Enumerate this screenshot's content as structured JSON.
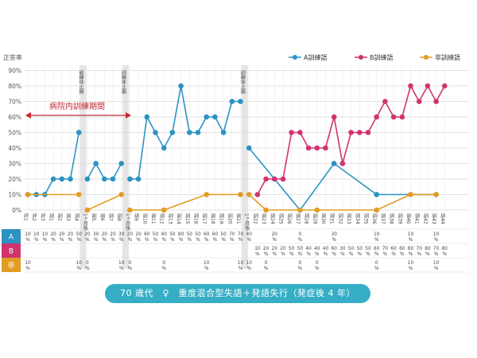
{
  "colors": {
    "a": "#2b93c3",
    "b": "#d1336f",
    "c": "#e39c22",
    "arrow": "#c42a34",
    "caption_bg": "#35aec6",
    "grid": "#d9d9d9",
    "shade": "#e5e5e5"
  },
  "chart_data": {
    "type": "line",
    "ylabel": "正答率",
    "yticks": [
      "0%",
      "10%",
      "20%",
      "30%",
      "40%",
      "50%",
      "60%",
      "70%",
      "80%",
      "90%"
    ],
    "ylim": [
      0,
      90
    ],
    "legend": [
      {
        "key": "a",
        "label": "A訓練語"
      },
      {
        "key": "b",
        "label": "B訓練語"
      },
      {
        "key": "c",
        "label": "非訓練語"
      }
    ],
    "legend_position": "top-right",
    "categories": [
      "評1",
      "評2",
      "評3",
      "訓1",
      "訓2",
      "訓3",
      "訓4",
      "1ヶ月後",
      "訓5",
      "訓6",
      "訓7",
      "訓8",
      "1ヶ月後",
      "訓9",
      "訓10",
      "訓11",
      "訓12",
      "訓13",
      "訓14",
      "訓15",
      "訓16",
      "訓17",
      "訓18",
      "訓19",
      "訓20",
      "訓21",
      "1ヶ月後",
      "訓22",
      "訓23",
      "訓24",
      "訓25",
      "訓26",
      "訓27",
      "訓28",
      "訓29",
      "訓30",
      "訓31",
      "訓32",
      "訓33",
      "訓34",
      "訓35",
      "訓36",
      "訓37",
      "訓38",
      "訓39",
      "訓40",
      "訓41",
      "訓42",
      "訓43",
      "訓44"
    ],
    "segments": [
      [
        0,
        6
      ],
      [
        7,
        11
      ],
      [
        12,
        25
      ],
      [
        26,
        49
      ]
    ],
    "pauses": [
      {
        "after": 6,
        "label": "訓練休止期"
      },
      {
        "after": 11,
        "label": "訓練休止期"
      },
      {
        "after": 25,
        "label": "訓練休止期"
      }
    ],
    "series": [
      {
        "key": "a",
        "name": "A訓練語",
        "points": [
          [
            0,
            10
          ],
          [
            1,
            10
          ],
          [
            2,
            10
          ],
          [
            3,
            20
          ],
          [
            4,
            20
          ],
          [
            5,
            20
          ],
          [
            6,
            50
          ],
          [
            7,
            20
          ],
          [
            8,
            30
          ],
          [
            9,
            20
          ],
          [
            10,
            20
          ],
          [
            11,
            30
          ],
          [
            12,
            20
          ],
          [
            13,
            20
          ],
          [
            14,
            60
          ],
          [
            15,
            50
          ],
          [
            16,
            40
          ],
          [
            17,
            50
          ],
          [
            18,
            80
          ],
          [
            19,
            50
          ],
          [
            20,
            50
          ],
          [
            21,
            60
          ],
          [
            22,
            60
          ],
          [
            23,
            50
          ],
          [
            24,
            70
          ],
          [
            25,
            70
          ],
          [
            26,
            40
          ],
          [
            29,
            20
          ],
          [
            32,
            0
          ],
          [
            36,
            30
          ],
          [
            41,
            10
          ],
          [
            45,
            10
          ],
          [
            48,
            10
          ]
        ]
      },
      {
        "key": "b",
        "name": "B訓練語",
        "points": [
          [
            27,
            10
          ],
          [
            28,
            20
          ],
          [
            29,
            20
          ],
          [
            30,
            20
          ],
          [
            31,
            50
          ],
          [
            32,
            50
          ],
          [
            33,
            40
          ],
          [
            34,
            40
          ],
          [
            35,
            40
          ],
          [
            36,
            60
          ],
          [
            37,
            30
          ],
          [
            38,
            50
          ],
          [
            39,
            50
          ],
          [
            40,
            50
          ],
          [
            41,
            60
          ],
          [
            42,
            70
          ],
          [
            43,
            60
          ],
          [
            44,
            60
          ],
          [
            45,
            80
          ],
          [
            46,
            70
          ],
          [
            47,
            80
          ],
          [
            48,
            70
          ],
          [
            49,
            80
          ]
        ]
      },
      {
        "key": "c",
        "name": "非訓練語",
        "points": [
          [
            0,
            10
          ],
          [
            6,
            10
          ],
          [
            7,
            0
          ],
          [
            11,
            10
          ],
          [
            12,
            0
          ],
          [
            16,
            0
          ],
          [
            21,
            10
          ],
          [
            25,
            10
          ],
          [
            26,
            10
          ],
          [
            28,
            0
          ],
          [
            32,
            0
          ],
          [
            34,
            0
          ],
          [
            41,
            0
          ],
          [
            45,
            10
          ],
          [
            48,
            10
          ]
        ]
      }
    ],
    "bracket_label": "病院内訓練期間",
    "table": {
      "rows": [
        {
          "key": "a",
          "label": "A",
          "values": [
            [
              "10",
              "%"
            ],
            [
              "10",
              "%"
            ],
            [
              "10",
              "%"
            ],
            [
              "20",
              "%"
            ],
            [
              "20",
              "%"
            ],
            [
              "20",
              "%"
            ],
            [
              "50",
              "%"
            ],
            [
              "20",
              "%"
            ],
            [
              "30",
              "%"
            ],
            [
              "20",
              "%"
            ],
            [
              "20",
              "%"
            ],
            [
              "30",
              "%"
            ],
            [
              "20",
              "%"
            ],
            [
              "20",
              "%"
            ],
            [
              "60",
              "%"
            ],
            [
              "50",
              "%"
            ],
            [
              "40",
              "%"
            ],
            [
              "50",
              "%"
            ],
            [
              "80",
              "%"
            ],
            [
              "50",
              "%"
            ],
            [
              "50",
              "%"
            ],
            [
              "60",
              "%"
            ],
            [
              "60",
              "%"
            ],
            [
              "50",
              "%"
            ],
            [
              "70",
              "%"
            ],
            [
              "70",
              "%"
            ],
            [
              "40",
              "%"
            ],
            null,
            null,
            [
              "20",
              "%"
            ],
            null,
            null,
            [
              "0",
              "%"
            ],
            null,
            null,
            null,
            [
              "30",
              "%"
            ],
            null,
            null,
            null,
            null,
            [
              "10",
              "%"
            ],
            null,
            null,
            null,
            [
              "10",
              "%"
            ],
            null,
            null,
            [
              "10",
              "%"
            ],
            null
          ]
        },
        {
          "key": "b",
          "label": "B",
          "values": [
            null,
            null,
            null,
            null,
            null,
            null,
            null,
            null,
            null,
            null,
            null,
            null,
            null,
            null,
            null,
            null,
            null,
            null,
            null,
            null,
            null,
            null,
            null,
            null,
            null,
            null,
            null,
            [
              "10",
              "%"
            ],
            [
              "20",
              "%"
            ],
            [
              "20",
              "%"
            ],
            [
              "20",
              "%"
            ],
            [
              "50",
              "%"
            ],
            [
              "50",
              "%"
            ],
            [
              "40",
              "%"
            ],
            [
              "40",
              "%"
            ],
            [
              "40",
              "%"
            ],
            [
              "60",
              "%"
            ],
            [
              "30",
              "%"
            ],
            [
              "50",
              "%"
            ],
            [
              "50",
              "%"
            ],
            [
              "50",
              "%"
            ],
            [
              "60",
              "%"
            ],
            [
              "70",
              "%"
            ],
            [
              "60",
              "%"
            ],
            [
              "60",
              "%"
            ],
            [
              "80",
              "%"
            ],
            [
              "70",
              "%"
            ],
            [
              "80",
              "%"
            ],
            [
              "70",
              "%"
            ],
            [
              "80",
              "%"
            ]
          ]
        },
        {
          "key": "c",
          "label": "非",
          "values": [
            [
              "10",
              "%"
            ],
            null,
            null,
            null,
            null,
            null,
            [
              "10",
              "%"
            ],
            [
              "0",
              "%"
            ],
            null,
            null,
            null,
            [
              "10",
              "%"
            ],
            [
              "0",
              "%"
            ],
            null,
            null,
            null,
            [
              "0",
              "%"
            ],
            null,
            null,
            null,
            null,
            [
              "10",
              "%"
            ],
            null,
            null,
            null,
            [
              "10",
              "%"
            ],
            [
              "10",
              "%"
            ],
            null,
            [
              "0",
              "%"
            ],
            null,
            null,
            null,
            [
              "0",
              "%"
            ],
            null,
            [
              "0",
              "%"
            ],
            null,
            null,
            null,
            null,
            null,
            null,
            [
              "0",
              "%"
            ],
            null,
            null,
            null,
            [
              "10",
              "%"
            ],
            null,
            null,
            [
              "10",
              "%"
            ],
            null
          ]
        }
      ]
    }
  },
  "caption": "70 歳代　♀　重度混合型失語＋発語失行（発症後 4 年）"
}
